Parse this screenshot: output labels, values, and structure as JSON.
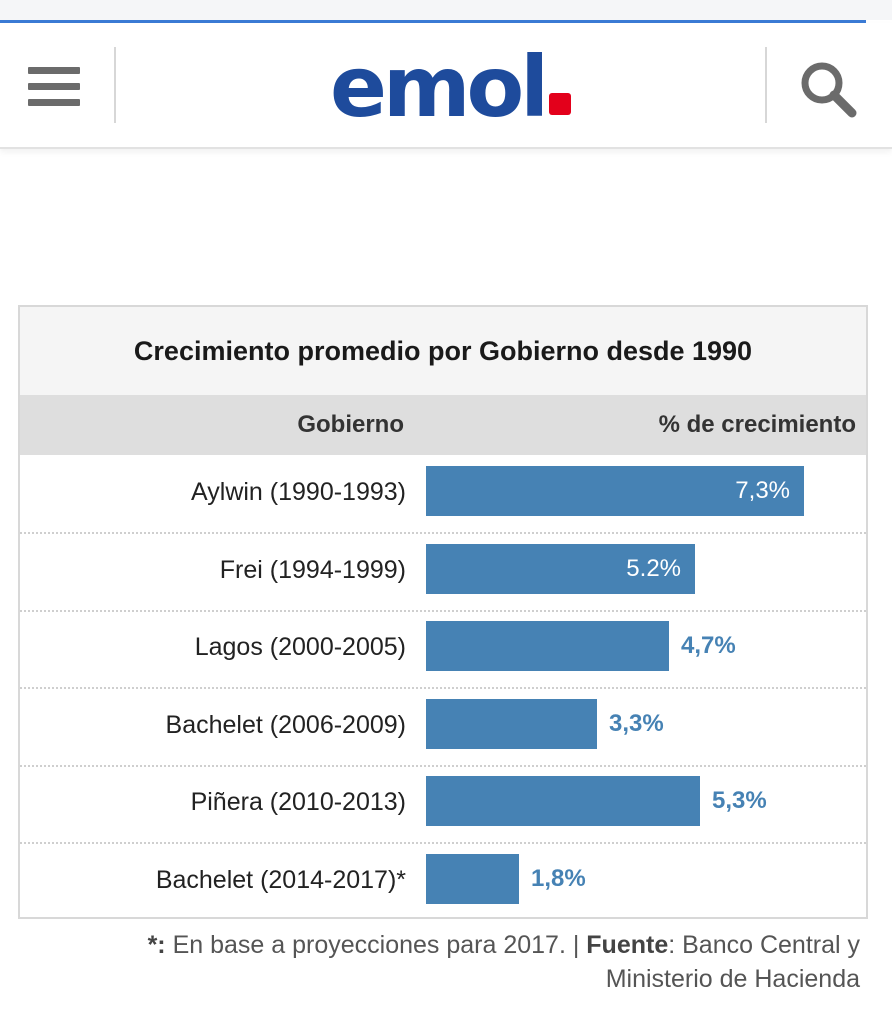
{
  "header": {
    "logo_text": "emol",
    "menu_icon": "hamburger-menu-icon",
    "search_icon": "search-icon",
    "brand_color": "#1e4b9c",
    "dot_color": "#e3001b"
  },
  "table": {
    "col_gobierno": "Gobierno",
    "col_crecimiento": "% de crecimiento"
  },
  "chart_data": {
    "type": "bar",
    "orientation": "horizontal",
    "title": "Crecimiento promedio por Gobierno desde 1990",
    "categories": [
      "Aylwin (1990-1993)",
      "Frei (1994-1999)",
      "Lagos (2000-2005)",
      "Bachelet (2006-2009)",
      "Piñera (2010-2013)",
      "Bachelet (2014-2017)*"
    ],
    "values": [
      7.3,
      5.2,
      4.7,
      3.3,
      5.3,
      1.8
    ],
    "value_labels": [
      "7,3%",
      "5.2%",
      "4,7%",
      "3,3%",
      "5,3%",
      "1,8%"
    ],
    "xlabel": "% de crecimiento",
    "ylabel": "Gobierno",
    "bar_color": "#4682b4"
  },
  "footnote": {
    "marker": "*:",
    "text1": " En base a proyecciones para 2017. | ",
    "source_label": "Fuente",
    "text2": ": Banco Central y Ministerio de Hacienda"
  }
}
